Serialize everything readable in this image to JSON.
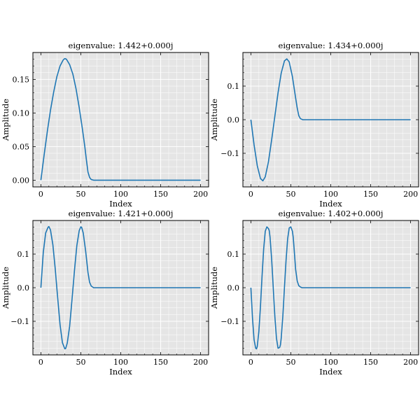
{
  "colors": {
    "line": "#1f77b4",
    "plot_bg": "#e5e5e5",
    "grid": "#ffffff",
    "axes": "#000000"
  },
  "chart_data": [
    {
      "type": "line",
      "title": "eigenvalue: 1.442+0.000j",
      "xlabel": "Index",
      "ylabel": "Amplitude",
      "xlim": [
        -10,
        210
      ],
      "ylim": [
        -0.01,
        0.19
      ],
      "xticks": [
        0,
        50,
        100,
        150,
        200
      ],
      "yticks": [
        0.0,
        0.05,
        0.1,
        0.15
      ],
      "yticklabels": [
        "0.00",
        "0.05",
        "0.10",
        "0.15"
      ],
      "grid": true,
      "series": [
        {
          "x": [
            0,
            4,
            8,
            12,
            16,
            20,
            24,
            28,
            30,
            32,
            36,
            40,
            44,
            48,
            52,
            55,
            57,
            59,
            61,
            63,
            66,
            70,
            80,
            100,
            150,
            200
          ],
          "values": [
            0.0,
            0.037,
            0.072,
            0.104,
            0.131,
            0.154,
            0.17,
            0.179,
            0.181,
            0.18,
            0.172,
            0.158,
            0.136,
            0.108,
            0.076,
            0.05,
            0.03,
            0.012,
            0.004,
            0.001,
            0.0,
            0.0,
            0.0,
            0.0,
            0.0,
            0.0
          ]
        }
      ]
    },
    {
      "type": "line",
      "title": "eigenvalue: 1.434+0.000j",
      "xlabel": "Index",
      "ylabel": "Amplitude",
      "xlim": [
        -10,
        210
      ],
      "ylim": [
        -0.2,
        0.2
      ],
      "xticks": [
        0,
        50,
        100,
        150,
        200
      ],
      "yticks": [
        -0.1,
        0.0,
        0.1
      ],
      "yticklabels": [
        "−0.1",
        "0.0",
        "0.1"
      ],
      "grid": true,
      "series": [
        {
          "x": [
            0,
            4,
            8,
            12,
            15,
            18,
            22,
            26,
            30,
            34,
            38,
            42,
            45,
            48,
            52,
            56,
            58,
            60,
            62,
            65,
            70,
            80,
            100,
            150,
            200
          ],
          "values": [
            0.0,
            -0.075,
            -0.137,
            -0.175,
            -0.182,
            -0.17,
            -0.125,
            -0.06,
            0.01,
            0.08,
            0.139,
            0.175,
            0.181,
            0.172,
            0.128,
            0.065,
            0.035,
            0.012,
            0.003,
            0.0,
            0.0,
            0.0,
            0.0,
            0.0,
            0.0
          ]
        }
      ]
    },
    {
      "type": "line",
      "title": "eigenvalue: 1.421+0.000j",
      "xlabel": "Index",
      "ylabel": "Amplitude",
      "xlim": [
        -10,
        210
      ],
      "ylim": [
        -0.2,
        0.2
      ],
      "xticks": [
        0,
        50,
        100,
        150,
        200
      ],
      "yticks": [
        -0.1,
        0.0,
        0.1
      ],
      "yticklabels": [
        "−0.1",
        "0.0",
        "0.1"
      ],
      "grid": true,
      "series": [
        {
          "x": [
            0,
            3,
            6,
            9,
            10,
            12,
            15,
            18,
            21,
            24,
            27,
            30,
            31,
            33,
            36,
            39,
            42,
            45,
            48,
            50,
            51,
            53,
            56,
            59,
            61,
            63,
            66,
            70,
            80,
            100,
            150,
            200
          ],
          "values": [
            0.0,
            0.105,
            0.163,
            0.18,
            0.182,
            0.172,
            0.128,
            0.055,
            -0.03,
            -0.11,
            -0.164,
            -0.182,
            -0.181,
            -0.165,
            -0.115,
            -0.035,
            0.05,
            0.125,
            0.17,
            0.181,
            0.18,
            0.163,
            0.11,
            0.045,
            0.016,
            0.005,
            0.0,
            0.0,
            0.0,
            0.0,
            0.0,
            0.0
          ]
        }
      ]
    },
    {
      "type": "line",
      "title": "eigenvalue: 1.402+0.000j",
      "xlabel": "Index",
      "ylabel": "Amplitude",
      "xlim": [
        -10,
        210
      ],
      "ylim": [
        -0.2,
        0.2
      ],
      "xticks": [
        0,
        50,
        100,
        150,
        200
      ],
      "yticks": [
        -0.1,
        0.0,
        0.1
      ],
      "yticklabels": [
        "−0.1",
        "0.0",
        "0.1"
      ],
      "grid": true,
      "series": [
        {
          "x": [
            0,
            2,
            4,
            6,
            7,
            8,
            10,
            12,
            14,
            16,
            18,
            20,
            22,
            23,
            24,
            26,
            28,
            30,
            32,
            34,
            36,
            37,
            38,
            40,
            42,
            44,
            46,
            48,
            50,
            52,
            53,
            54,
            56,
            58,
            60,
            62,
            64,
            67,
            70,
            80,
            100,
            150,
            200
          ],
          "values": [
            0.0,
            -0.09,
            -0.155,
            -0.18,
            -0.182,
            -0.175,
            -0.13,
            -0.055,
            0.035,
            0.115,
            0.168,
            0.181,
            0.176,
            0.17,
            0.15,
            0.085,
            0.0,
            -0.085,
            -0.15,
            -0.18,
            -0.178,
            -0.17,
            -0.15,
            -0.085,
            0.0,
            0.08,
            0.145,
            0.178,
            0.181,
            0.168,
            0.15,
            0.12,
            0.055,
            0.02,
            0.006,
            0.002,
            0.0,
            0.0,
            0.0,
            0.0,
            0.0,
            0.0,
            0.0
          ]
        }
      ]
    }
  ]
}
